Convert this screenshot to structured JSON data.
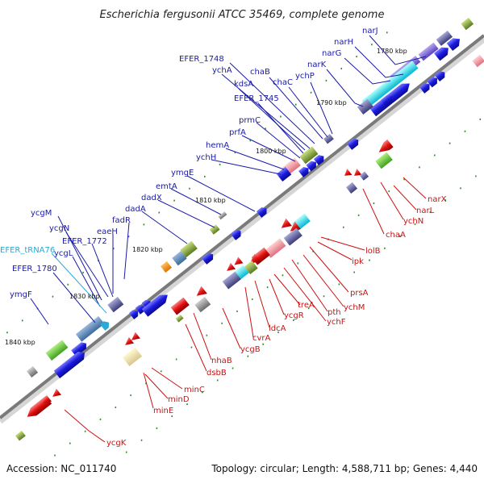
{
  "title": "Escherichia fergusonii ATCC 35469, complete genome",
  "footer": {
    "accession": "Accession: NC_011740",
    "topology": "Topology: circular; Length: 4,588,711 bp; Genes: 4,440"
  },
  "colors": {
    "backbone": "#7a7a7a",
    "tick": "#2e8b2e",
    "forward_gene": "#1a1ae0",
    "reverse_gene": "#e01010",
    "label_blue": "#1a1aa8",
    "label_red": "#cc1111",
    "label_cyan": "#2aa9d6"
  },
  "kbp_markers": [
    "1780 kbp",
    "1790 kbp",
    "1800 kbp",
    "1810 kbp",
    "1820 kbp",
    "1830 kbp",
    "1840 kbp"
  ],
  "forward_labels": [
    "narJ",
    "narH",
    "narG",
    "narK",
    "ychP",
    "chaC",
    "chaB",
    "EFER_1748",
    "ychA",
    "kdsA",
    "EFER_1745",
    "prmC",
    "prfA",
    "hemA",
    "ychH",
    "ymgE",
    "emtA",
    "dadX",
    "dadA",
    "fadR",
    "eaeH",
    "EFER_1772",
    "ycgN",
    "ycgM",
    "ycgL",
    "EFER_tRNA76",
    "EFER_1780",
    "ymgF"
  ],
  "reverse_labels": [
    "narX",
    "narL",
    "ychN",
    "chaA",
    "lolB",
    "ipk",
    "prsA",
    "ychM",
    "pth",
    "ychF",
    "treA",
    "ycgR",
    "ldcA",
    "cvrA",
    "ycgB",
    "nhaB",
    "dsbB",
    "minC",
    "minD",
    "minE",
    "ycgK"
  ]
}
